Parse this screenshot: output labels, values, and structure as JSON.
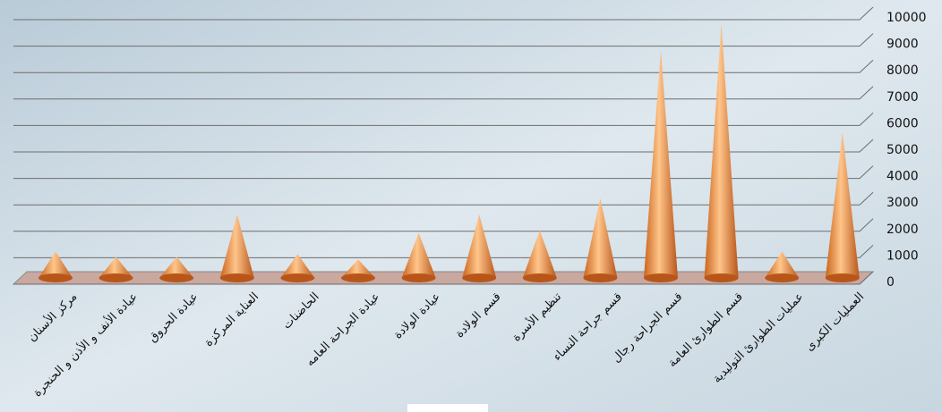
{
  "chart_data": {
    "type": "cone",
    "categories": [
      "مركز الأسنان",
      "عيادة الأنف و الأذن و الحنجرة",
      "عيادة الحروق",
      "العناية المركزة",
      "الحاضنات",
      "عيادة الجراحة العامه",
      "عيادة الولادة",
      "قسم الولادة",
      "تنظيم الأسرة",
      "قسم جراحة النساء",
      "قسم الجراحة رجال",
      "قسم الطوارئ العامة",
      "عمليات الطوارئ التوليدية",
      "العمليات الكبرى"
    ],
    "values": [
      1000,
      800,
      800,
      2400,
      900,
      700,
      1700,
      2400,
      1800,
      3000,
      8600,
      9600,
      1000,
      5500
    ],
    "color": "#e8893a",
    "ylim": [
      0,
      10000
    ],
    "yticks": [
      0,
      1000,
      2000,
      3000,
      4000,
      5000,
      6000,
      7000,
      8000,
      9000,
      10000
    ],
    "grid": true
  }
}
